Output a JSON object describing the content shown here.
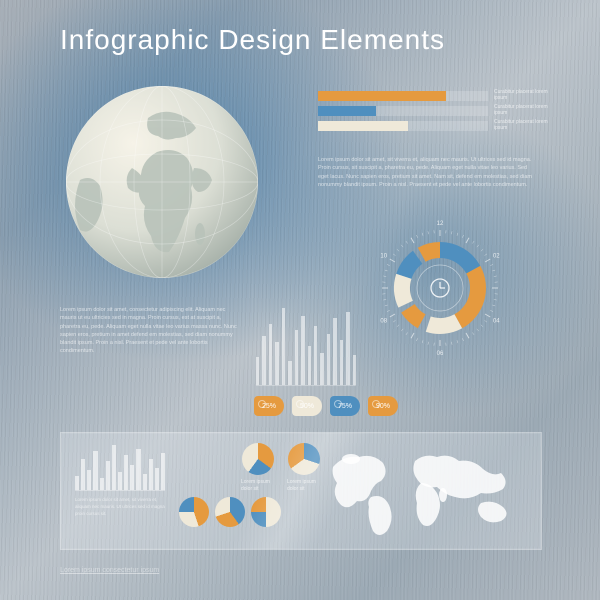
{
  "title": "Infographic Design Elements",
  "palette": {
    "orange": "#e59a3f",
    "blue": "#4f8fbf",
    "cream": "#efe9d9",
    "white": "#ffffff",
    "track": "rgba(255,255,255,0.18)",
    "text_faint": "rgba(255,255,255,0.65)"
  },
  "globe": {
    "sphere_light": "#f4f1e4",
    "sphere_dark": "#cfd6ce",
    "land": "#c7d0c8",
    "meridians": "rgba(255,255,255,0.35)"
  },
  "hbars": {
    "track_width": 170,
    "rows": [
      {
        "value": 128,
        "color": "#e59a3f",
        "label": "Curabitur placerat\nlorem ipsum"
      },
      {
        "value": 58,
        "color": "#4f8fbf",
        "label": "Curabitur placerat\nlorem ipsum"
      },
      {
        "value": 90,
        "color": "#efe9d9",
        "label": "Curabitur placerat\nlorem ipsum"
      }
    ]
  },
  "lipsum_right": "Lorem ipsum dolor sit amet, sit viverra et, aliquam nec mauris. Ut ultrices sed id magna. Proin cursus, sit suscipit a, pharetra eu, pede. Aliquam eget nulla vitae leo varius. Sed eget lacus. Nunc sapien eros, pretium sit amet. Nam sit, defend em molestias, sed diam nonummy blandit ipsum. Proin a nisl. Praesent et pede vel ante lobortis condimentum.",
  "lipsum_left": "Lorem ipsum dolor sit amet, consectetur adipiscing elit. Aliquam nec mauris ut eu ultricies sed in magna. Proin cursus, est at suscipit a, pharetra eu, pede. Aliquam eget nulla vitae leo varius massa nunc. Nunc sapien eros, pretium in amet defend em molestias, sed diam nonummy blandit ipsum. Proin a nisl. Praesent et pede vel ante lobortis condimentum.",
  "radial": {
    "ticks": [
      "12",
      "02",
      "04",
      "06",
      "08",
      "10"
    ],
    "segments": [
      {
        "start": 0.0,
        "end": 0.17,
        "color": "#4f8fbf"
      },
      {
        "start": 0.17,
        "end": 0.42,
        "color": "#e59a3f"
      },
      {
        "start": 0.42,
        "end": 0.55,
        "color": "#efe9d9"
      },
      {
        "start": 0.58,
        "end": 0.66,
        "color": "#e59a3f"
      },
      {
        "start": 0.68,
        "end": 0.8,
        "color": "#efe9d9"
      },
      {
        "start": 0.8,
        "end": 0.9,
        "color": "#4f8fbf"
      },
      {
        "start": 0.92,
        "end": 1.0,
        "color": "#e59a3f"
      }
    ],
    "icon_color": "rgba(255,255,255,0.85)"
  },
  "bars": {
    "values": [
      28,
      50,
      62,
      44,
      78,
      24,
      56,
      70,
      40,
      60,
      32,
      52,
      68,
      46,
      74,
      30
    ],
    "max": 78,
    "color": "rgba(255,255,255,0.55)"
  },
  "tags": [
    {
      "label": "25%",
      "color": "#e59a3f"
    },
    {
      "label": "50%",
      "color": "#efe9d9"
    },
    {
      "label": "75%",
      "color": "#4f8fbf"
    },
    {
      "label": "90%",
      "color": "#e59a3f"
    }
  ],
  "panel": {
    "bars": {
      "values": [
        14,
        30,
        20,
        38,
        12,
        28,
        44,
        18,
        34,
        24,
        40,
        16,
        30,
        22,
        36
      ],
      "max": 44
    },
    "lipsum": "Lorem ipsum dolor sit amet, sit viverra et, aliquam nec mauris. Ut ultrices sed id magna proin cursus sit.",
    "pies_upper": [
      {
        "slices": [
          [
            "#e59a3f",
            0.35
          ],
          [
            "#4f8fbf",
            0.25
          ],
          [
            "#efe9d9",
            0.4
          ]
        ],
        "label": "Lorem ipsum dolor sit"
      },
      {
        "slices": [
          [
            "#4f8fbf",
            0.3
          ],
          [
            "#efe9d9",
            0.35
          ],
          [
            "#e59a3f",
            0.35
          ]
        ],
        "label": "Lorem ipsum dolor sit"
      }
    ],
    "pies_lower": [
      {
        "slices": [
          [
            "#e59a3f",
            0.45
          ],
          [
            "#efe9d9",
            0.3
          ],
          [
            "#4f8fbf",
            0.25
          ]
        ]
      },
      {
        "slices": [
          [
            "#4f8fbf",
            0.4
          ],
          [
            "#e59a3f",
            0.3
          ],
          [
            "#efe9d9",
            0.3
          ]
        ]
      },
      {
        "slices": [
          [
            "#efe9d9",
            0.5
          ],
          [
            "#4f8fbf",
            0.25
          ],
          [
            "#e59a3f",
            0.25
          ]
        ]
      }
    ],
    "map_fill": "rgba(255,255,255,0.85)"
  },
  "footer": "Lorem ipsum consectetur ipsum"
}
